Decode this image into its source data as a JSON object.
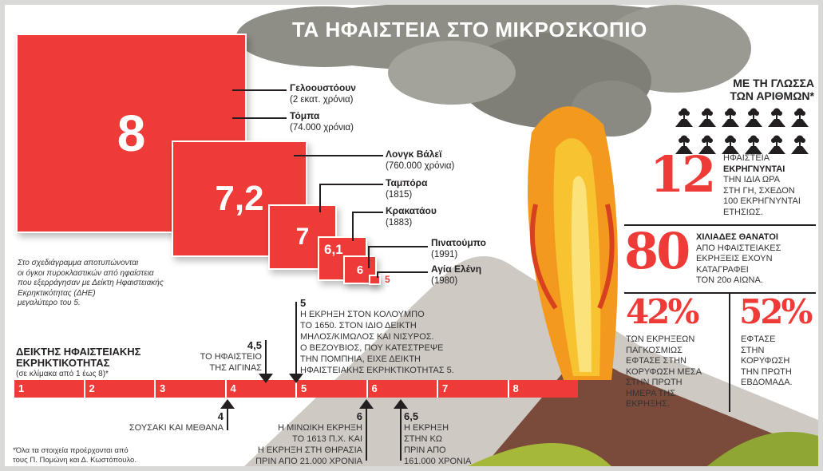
{
  "title": "ΤΑ ΗΦΑΙΣΤΕΙΑ ΣΤΟ ΜΙΚΡΟΣΚΟΠΙΟ",
  "squares": [
    {
      "value": "8",
      "names": [
        {
          "name": "Γελοουστόουν",
          "note": "(2 εκατ. χρόνια)"
        },
        {
          "name": "Τόμπα",
          "note": "(74.000 χρόνια)"
        }
      ]
    },
    {
      "value": "7,2",
      "names": [
        {
          "name": "Λονγκ Βάλεϊ",
          "note": "(760.000 χρόνια)"
        }
      ]
    },
    {
      "value": "7",
      "names": [
        {
          "name": "Ταμπόρα",
          "note": "(1815)"
        }
      ]
    },
    {
      "value": "6,1",
      "names": [
        {
          "name": "Κρακατάου",
          "note": "(1883)"
        }
      ]
    },
    {
      "value": "6",
      "names": [
        {
          "name": "Πινατούμπο",
          "note": "(1991)"
        }
      ]
    },
    {
      "value": "5",
      "names": [
        {
          "name": "Αγία Ελένη",
          "note": "(1980)"
        }
      ]
    }
  ],
  "diagram_note": [
    "Στο σχεδιάγραμμα αποτυπώνονται",
    "οι όγκοι πυροκλαστικών από ηφαίστεια",
    "που εξερράγησαν με Δείκτη Ηφαιστειακής",
    "Εκρηκτικότητας (ΔΗΕ)",
    "μεγαλύτερο του 5."
  ],
  "scale": {
    "title_1": "ΔΕΙΚΤΗΣ ΗΦΑΙΣΤΕΙΑΚΗΣ",
    "title_2": "ΕΚΡΗΚΤΙΚΟΤΗΤΑΣ",
    "subtitle": "(σε κλίμακα από 1 έως 8)*",
    "ticks": [
      "1",
      "2",
      "3",
      "4",
      "5",
      "6",
      "7",
      "8"
    ],
    "annotations": [
      {
        "value": "4,5",
        "lines": [
          "ΤΟ ΗΦΑΙΣΤΕΙΟ",
          "ΤΗΣ ΑΙΓΙΝΑΣ"
        ]
      },
      {
        "value": "5",
        "lines": [
          "Η ΕΚΡΗΞΗ ΣΤΟΝ ΚΟΛΟΥΜΠΟ",
          "ΤΟ 1650. ΣΤΟΝ ΙΔΙΟ ΔΕΙΚΤΗ",
          "ΜΗΛΟΣ/ΚΙΜΩΛΟΣ ΚΑΙ ΝΙΣΥΡΟΣ.",
          "Ο ΒΕΖΟΥΒΙΟΣ, ΠΟΥ ΚΑΤΕΣΤΡΕΨΕ",
          "ΤΗΝ ΠΟΜΠΗΙΑ, ΕΙΧΕ ΔΕΙΚΤΗ",
          "ΗΦΑΙΣΤΕΙΑΚΗΣ ΕΚΡΗΚΤΙΚΟΤΗΤΑΣ 5."
        ]
      },
      {
        "value": "4",
        "lines": [
          "ΣΟΥΣΑΚΙ ΚΑΙ ΜΕΘΑΝΑ"
        ]
      },
      {
        "value": "6",
        "lines": [
          "Η ΜΙΝΩΙΚΗ ΕΚΡΗΞΗ",
          "ΤΟ 1613 Π.Χ. ΚΑΙ",
          "Η ΕΚΡΗΞΗ ΣΤΗ ΘΗΡΑΣΙΑ",
          "ΠΡΙΝ ΑΠΟ 21.000 ΧΡΟΝΙΑ"
        ]
      },
      {
        "value": "6,5",
        "lines": [
          "Η ΕΚΡΗΞΗ",
          "ΣΤΗΝ ΚΩ",
          "ΠΡΙΝ ΑΠΟ",
          "161.000 ΧΡΟΝΙΑ"
        ]
      }
    ]
  },
  "footnote": [
    "*Όλα τα στοιχεία προέρχονται από",
    "τους Π. Πομώνη και Δ. Κωστόπουλο."
  ],
  "numbers": {
    "heading_1": "ΜΕ ΤΗ ΓΛΩΣΣΑ",
    "heading_2": "ΤΩΝ ΑΡΙΘΜΩΝ*",
    "icon": "erupting-volcano-icon",
    "icon_count": 12,
    "stat1": {
      "value": "12",
      "l1": "ΗΦΑΙΣΤΕΙΑ",
      "l2": "ΕΚΡΗΓΝΥΝΤΑΙ",
      "l3": "ΤΗΝ ΙΔΙΑ ΩΡΑ",
      "l4": "ΣΤΗ ΓΗ, ΣΧΕΔΟΝ",
      "l5": "100 ΕΚΡΗΓΝΥΝΤΑΙ",
      "l6": "ΕΤΗΣΙΩΣ."
    },
    "stat2": {
      "value": "80",
      "l1": "ΧΙΛΙΑΔΕΣ ΘΑΝΑΤΟΙ",
      "l2": "ΑΠΟ ΗΦΑΙΣΤΕΙΑΚΕΣ",
      "l3": "ΕΚΡΗΞΕΙΣ ΕΧΟΥΝ",
      "l4": "ΚΑΤΑΓΡΑΦΕΙ",
      "l5": "ΤΟΝ 20ο ΑΙΩΝΑ."
    },
    "stat3": {
      "value": "42%",
      "lines": [
        "ΤΩΝ ΕΚΡΗΞΕΩΝ",
        "ΠΑΓΚΟΣΜΙΩΣ",
        "ΕΦΤΑΣΕ ΣΤΗΝ",
        "ΚΟΡΥΦΩΣΗ ΜΕΣΑ",
        "ΣΤΗΝ ΠΡΩΤΗ",
        "ΗΜΕΡΑ ΤΗΣ",
        "ΕΚΡΗΞΗΣ."
      ]
    },
    "stat4": {
      "value": "52%",
      "lines": [
        "ΕΦΤΑΣΕ",
        "ΣΤΗΝ",
        "ΚΟΡΥΦΩΣΗ",
        "ΤΗΝ ΠΡΩΤΗ",
        "ΕΒΔΟΜΑΔΑ."
      ]
    }
  },
  "colors": {
    "accent": "#ee3b37",
    "text": "#231f20",
    "smoke": "#8c8c84",
    "cone": "#7a4a3a",
    "lava": "#f39a1e"
  }
}
